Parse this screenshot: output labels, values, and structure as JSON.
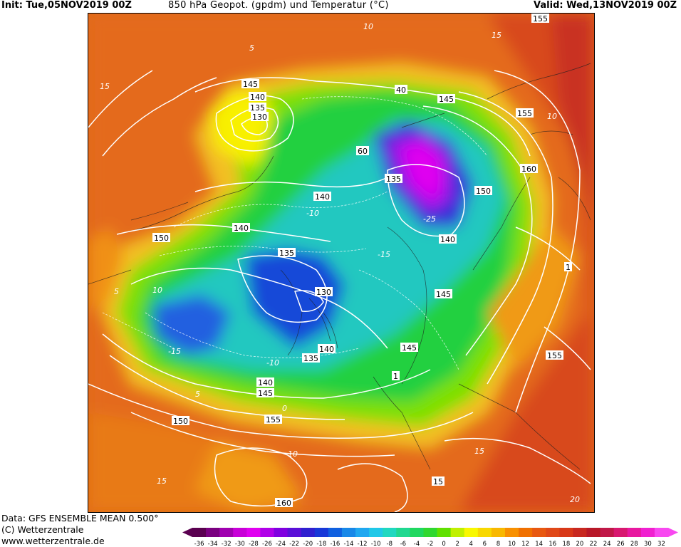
{
  "header": {
    "init": "Init: Tue,05NOV2019 00Z",
    "title": "850 hPa Geopot. (gpdm) und Temperatur (°C)",
    "valid": "Valid: Wed,13NOV2019 00Z"
  },
  "footer": {
    "data_source": "Data: GFS ENSEMBLE MEAN 0.500°",
    "copyright": "(C) Wetterzentrale",
    "website": "www.wetterzentrale.de"
  },
  "colorbar": {
    "ticks": [
      "-36",
      "-34",
      "-32",
      "-30",
      "-28",
      "-26",
      "-24",
      "-22",
      "-20",
      "-18",
      "-16",
      "-14",
      "-12",
      "-10",
      "-8",
      "-6",
      "-4",
      "-2",
      "0",
      "2",
      "4",
      "6",
      "8",
      "10",
      "12",
      "14",
      "16",
      "18",
      "20",
      "22",
      "24",
      "26",
      "28",
      "30",
      "32"
    ],
    "colors": [
      "#5a0050",
      "#7a0080",
      "#a000b0",
      "#c800d8",
      "#e000f0",
      "#b000e8",
      "#8000e0",
      "#5a10d8",
      "#3020d0",
      "#1838d8",
      "#1060e0",
      "#1888e8",
      "#20a8f0",
      "#20c8e8",
      "#20d8c0",
      "#20d890",
      "#20d860",
      "#30d830",
      "#60e000",
      "#c0f000",
      "#f8f800",
      "#f8d800",
      "#f8b800",
      "#f89000",
      "#f07000",
      "#e85810",
      "#e04818",
      "#d83818",
      "#c82820",
      "#b81828",
      "#c01848",
      "#d81870",
      "#e818a0",
      "#f020d0",
      "#f848f0"
    ]
  },
  "map": {
    "geopotential_labels": [
      {
        "text": "145",
        "id": "z145-nw"
      },
      {
        "text": "140",
        "id": "z140-nw"
      },
      {
        "text": "135",
        "id": "z135-nw"
      },
      {
        "text": "130",
        "id": "z130-nw"
      },
      {
        "text": "145",
        "id": "z145-ne"
      },
      {
        "text": "155",
        "id": "z155-ne"
      },
      {
        "text": "160",
        "id": "z160-ne"
      },
      {
        "text": "140",
        "id": "z140-n"
      },
      {
        "text": "135",
        "id": "z135-n"
      },
      {
        "text": "150",
        "id": "z150-e"
      },
      {
        "text": "140",
        "id": "z140-e"
      },
      {
        "text": "150",
        "id": "z150-w"
      },
      {
        "text": "140",
        "id": "z140-w"
      },
      {
        "text": "135",
        "id": "z135-c"
      },
      {
        "text": "130",
        "id": "z130-c"
      },
      {
        "text": "145",
        "id": "z145-e2"
      },
      {
        "text": "145",
        "id": "z145-se"
      },
      {
        "text": "135",
        "id": "z135-s"
      },
      {
        "text": "140",
        "id": "z140-s"
      },
      {
        "text": "155",
        "id": "z155-e"
      },
      {
        "text": "140",
        "id": "z140-sw"
      },
      {
        "text": "145",
        "id": "z145-sw"
      },
      {
        "text": "150",
        "id": "z150-sw"
      },
      {
        "text": "155",
        "id": "z155-s"
      },
      {
        "text": "160",
        "id": "z160-s"
      },
      {
        "text": "15",
        "id": "z15-se"
      },
      {
        "text": "1",
        "id": "z1-se"
      },
      {
        "text": "40",
        "id": "z40-n"
      },
      {
        "text": "60",
        "id": "z60-n"
      },
      {
        "text": "155",
        "id": "z155-top"
      },
      {
        "text": "1",
        "id": "z1-e"
      }
    ],
    "temperature_labels": [
      {
        "text": "15",
        "id": "t15-nw"
      },
      {
        "text": "10",
        "id": "t10-n"
      },
      {
        "text": "5",
        "id": "t5-n"
      },
      {
        "text": "15",
        "id": "t15-ne"
      },
      {
        "text": "10",
        "id": "t10-ne"
      },
      {
        "text": "-10",
        "id": "tm10-c"
      },
      {
        "text": "-15",
        "id": "tm15-c"
      },
      {
        "text": "-25",
        "id": "tm25-e"
      },
      {
        "text": "5",
        "id": "t5-w"
      },
      {
        "text": "10",
        "id": "t10-w"
      },
      {
        "text": "-15",
        "id": "tm15-w"
      },
      {
        "text": "-10",
        "id": "tm10-w"
      },
      {
        "text": "5",
        "id": "t5-sw"
      },
      {
        "text": "0",
        "id": "t0-s"
      },
      {
        "text": "10",
        "id": "t10-s"
      },
      {
        "text": "15",
        "id": "t15-s"
      },
      {
        "text": "15",
        "id": "t15-se"
      },
      {
        "text": "20",
        "id": "t20-se"
      }
    ]
  }
}
